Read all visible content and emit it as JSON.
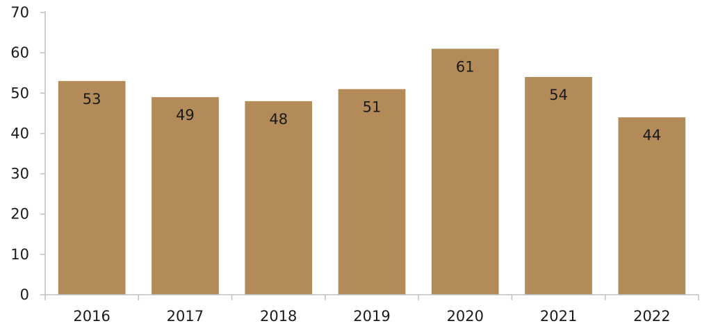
{
  "chart_data": {
    "type": "bar",
    "categories": [
      "2016",
      "2017",
      "2018",
      "2019",
      "2020",
      "2021",
      "2022"
    ],
    "values": [
      53,
      49,
      48,
      51,
      61,
      54,
      44
    ],
    "ylim": [
      0,
      70
    ],
    "yticks": [
      0,
      10,
      20,
      30,
      40,
      50,
      60,
      70
    ],
    "grid": false,
    "legend": "none",
    "bar_color": "#b38b59",
    "axis_color": "#bfbfbf",
    "text_color": "#1a1a1a"
  }
}
